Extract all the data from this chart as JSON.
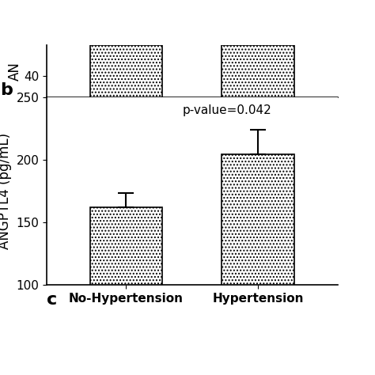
{
  "categories": [
    "No-Hypertension",
    "Hypertension"
  ],
  "values": [
    162,
    204
  ],
  "error_upper": [
    11,
    20
  ],
  "ylabel": "ANGPTL4 (pg/mL)",
  "ylim": [
    100,
    250
  ],
  "yticks": [
    100,
    150,
    200,
    250
  ],
  "pvalue_text": "p-value=0.042",
  "panel_b_label": "b",
  "panel_c_label": "c",
  "bar_edgecolor": "#000000",
  "background_color": "#ffffff",
  "tick_fontsize": 11,
  "label_fontsize": 12,
  "pvalue_fontsize": 11,
  "panel_fontsize": 16,
  "bar_width": 0.55,
  "hatch_pattern": "....",
  "top_partial_ytick": "40",
  "top_partial_ylabel_partial": "AN",
  "top_partial_bar_hatch": "....",
  "top_partial_categories": [
    "No-Hypertension",
    "Hypertension"
  ]
}
